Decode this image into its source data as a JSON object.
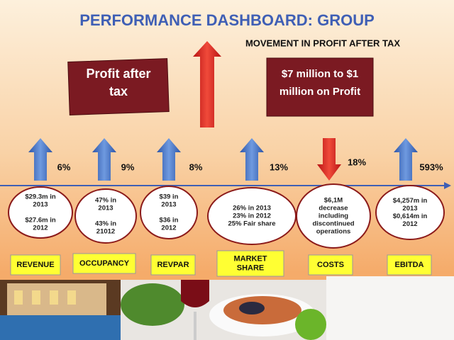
{
  "header": {
    "title": "PERFORMANCE DASHBOARD: GROUP",
    "subtitle": "MOVEMENT IN PROFIT AFTER TAX"
  },
  "callouts": [
    [
      "Profit after",
      "tax"
    ],
    [
      "$7 million to $1",
      "million on Profit"
    ]
  ],
  "metrics": [
    {
      "change": "6%",
      "arrow": "up",
      "detail": [
        "$29.3m in",
        "2013",
        "",
        "$27.6m  in",
        "2012"
      ],
      "label": [
        "REVENUE"
      ]
    },
    {
      "change": "9%",
      "arrow": "up",
      "detail": [
        "47% in",
        "2013",
        "",
        "43% in",
        "21012"
      ],
      "label": [
        "OCCUPANCY"
      ]
    },
    {
      "change": "8%",
      "arrow": "up",
      "detail": [
        "$39 in",
        "2013",
        "",
        "$36 in",
        "2012"
      ],
      "label": [
        "REVPAR"
      ]
    },
    {
      "change": "13%",
      "arrow": "up",
      "detail": [
        "26% in 2013",
        "23% in 2012",
        "25% Fair share"
      ],
      "label": [
        "MARKET",
        "SHARE"
      ]
    },
    {
      "change": "18%",
      "arrow": "down",
      "detail": [
        "$6,1M",
        "decrease",
        "including",
        "discontinued",
        "operations"
      ],
      "label": [
        "COSTS"
      ]
    },
    {
      "change": "593%",
      "arrow": "up",
      "detail": [
        "$4,257m in",
        "2013",
        "$0,614m in",
        "2012"
      ],
      "label": [
        "EBITDA"
      ]
    }
  ]
}
